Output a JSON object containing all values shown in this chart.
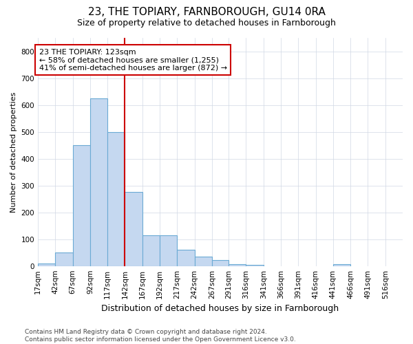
{
  "title1": "23, THE TOPIARY, FARNBOROUGH, GU14 0RA",
  "title2": "Size of property relative to detached houses in Farnborough",
  "xlabel": "Distribution of detached houses by size in Farnborough",
  "ylabel": "Number of detached properties",
  "footnote": "Contains HM Land Registry data © Crown copyright and database right 2024.\nContains public sector information licensed under the Open Government Licence v3.0.",
  "bin_labels": [
    "17sqm",
    "42sqm",
    "67sqm",
    "92sqm",
    "117sqm",
    "142sqm",
    "167sqm",
    "192sqm",
    "217sqm",
    "242sqm",
    "267sqm",
    "291sqm",
    "316sqm",
    "341sqm",
    "366sqm",
    "391sqm",
    "416sqm",
    "441sqm",
    "466sqm",
    "491sqm",
    "516sqm"
  ],
  "bar_values": [
    10,
    50,
    450,
    625,
    500,
    275,
    115,
    115,
    60,
    35,
    22,
    8,
    5,
    0,
    0,
    0,
    0,
    8,
    0,
    0,
    0
  ],
  "bar_color": "#c5d8f0",
  "bar_edge_color": "#6aaad4",
  "vline_color": "#cc0000",
  "annotation_text": "23 THE TOPIARY: 123sqm\n← 58% of detached houses are smaller (1,255)\n41% of semi-detached houses are larger (872) →",
  "annotation_box_color": "white",
  "annotation_box_edge_color": "#cc0000",
  "ylim": [
    0,
    850
  ],
  "yticks": [
    0,
    100,
    200,
    300,
    400,
    500,
    600,
    700,
    800
  ],
  "grid_color": "#d0d8e4",
  "bin_edges": [
    4.5,
    29.5,
    54.5,
    79.5,
    104.5,
    129.5,
    154.5,
    179.5,
    204.5,
    229.5,
    254.5,
    278.5,
    303.5,
    328.5,
    353.5,
    378.5,
    403.5,
    428.5,
    453.5,
    478.5,
    503.5,
    528.5
  ],
  "title1_fontsize": 11,
  "title2_fontsize": 9,
  "xlabel_fontsize": 9,
  "ylabel_fontsize": 8,
  "tick_fontsize": 7.5
}
